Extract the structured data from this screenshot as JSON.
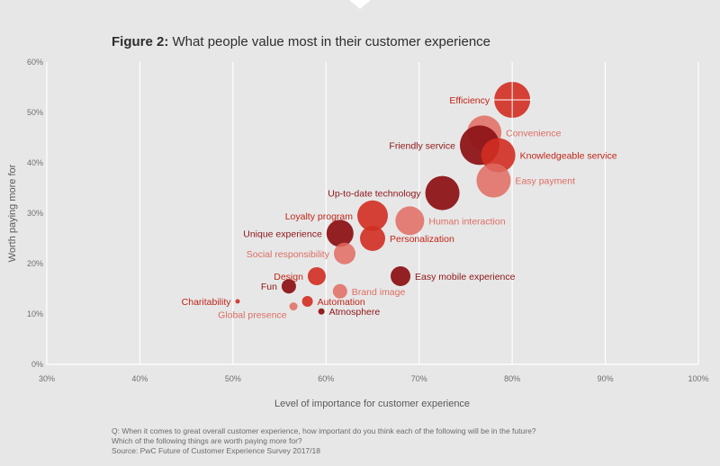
{
  "figure": {
    "title_lead": "Figure 2:",
    "title_rest": " What people value most in their customer experience"
  },
  "colors": {
    "dark": "#8e1518",
    "red": "#d12d21",
    "light": "#e16b60",
    "label_dark": "#8e1518",
    "label_red": "#c02416",
    "label_light": "#dc6d62"
  },
  "chart_data": {
    "type": "scatter",
    "title": "What people value most in their customer experience",
    "xlabel": "Level of importance for customer experience",
    "ylabel": "Worth paying more for",
    "xlim": [
      30,
      100
    ],
    "ylim": [
      0,
      60
    ],
    "xticks": [
      "30%",
      "40%",
      "50%",
      "60%",
      "70%",
      "80%",
      "90%",
      "100%"
    ],
    "yticks": [
      "0%",
      "10%",
      "20%",
      "30%",
      "40%",
      "50%",
      "60%"
    ],
    "xtick_values": [
      30,
      40,
      50,
      60,
      70,
      80,
      90,
      100
    ],
    "ytick_values": [
      0,
      10,
      20,
      30,
      40,
      50,
      60
    ],
    "grid": "vertical",
    "points": [
      {
        "label": "Efficiency",
        "x": 80,
        "y": 52.5,
        "r": 20,
        "tone": "red",
        "side": "left"
      },
      {
        "label": "Convenience",
        "x": 77,
        "y": 46,
        "r": 19,
        "tone": "light",
        "side": "right"
      },
      {
        "label": "Friendly service",
        "x": 76.5,
        "y": 43.5,
        "r": 22,
        "tone": "dark",
        "side": "left"
      },
      {
        "label": "Knowledgeable service",
        "x": 78.5,
        "y": 41.5,
        "r": 19,
        "tone": "red",
        "side": "right"
      },
      {
        "label": "Easy payment",
        "x": 78,
        "y": 36.5,
        "r": 19,
        "tone": "light",
        "side": "right"
      },
      {
        "label": "Up-to-date technology",
        "x": 72.5,
        "y": 34,
        "r": 19,
        "tone": "dark",
        "side": "left"
      },
      {
        "label": "Loyalty program",
        "x": 65,
        "y": 29.5,
        "r": 17,
        "tone": "red",
        "side": "left"
      },
      {
        "label": "Human interaction",
        "x": 69,
        "y": 28.5,
        "r": 16,
        "tone": "light",
        "side": "right"
      },
      {
        "label": "Unique experience",
        "x": 61.5,
        "y": 26,
        "r": 15,
        "tone": "dark",
        "side": "left"
      },
      {
        "label": "Personalization",
        "x": 65,
        "y": 25,
        "r": 14,
        "tone": "red",
        "side": "right"
      },
      {
        "label": "Social responsibility",
        "x": 62,
        "y": 22,
        "r": 12,
        "tone": "light",
        "side": "left"
      },
      {
        "label": "Design",
        "x": 59,
        "y": 17.5,
        "r": 10,
        "tone": "red",
        "side": "left"
      },
      {
        "label": "Easy mobile experience",
        "x": 68,
        "y": 17.5,
        "r": 11,
        "tone": "dark",
        "side": "right"
      },
      {
        "label": "Brand image",
        "x": 61.5,
        "y": 14.5,
        "r": 8,
        "tone": "light",
        "side": "right"
      },
      {
        "label": "Fun",
        "x": 56,
        "y": 15.5,
        "r": 8,
        "tone": "dark",
        "side": "left"
      },
      {
        "label": "Automation",
        "x": 58,
        "y": 12.5,
        "r": 6,
        "tone": "red",
        "side": "right"
      },
      {
        "label": "Charitability",
        "x": 50.5,
        "y": 12.5,
        "r": 2.5,
        "tone": "red",
        "side": "left"
      },
      {
        "label": "Global presence",
        "x": 56.5,
        "y": 11.5,
        "r": 4.5,
        "tone": "light",
        "side": "left-below"
      },
      {
        "label": "Atmosphere",
        "x": 59.5,
        "y": 10.5,
        "r": 3.5,
        "tone": "dark",
        "side": "right"
      }
    ]
  },
  "notes": {
    "line1": "Q: When it comes to great overall customer experience, how important do you think each of the following will be in the future?",
    "line2": "Which of the following things are worth paying more for?",
    "line3": "Source: PwC Future of Customer Experience Survey 2017/18"
  }
}
